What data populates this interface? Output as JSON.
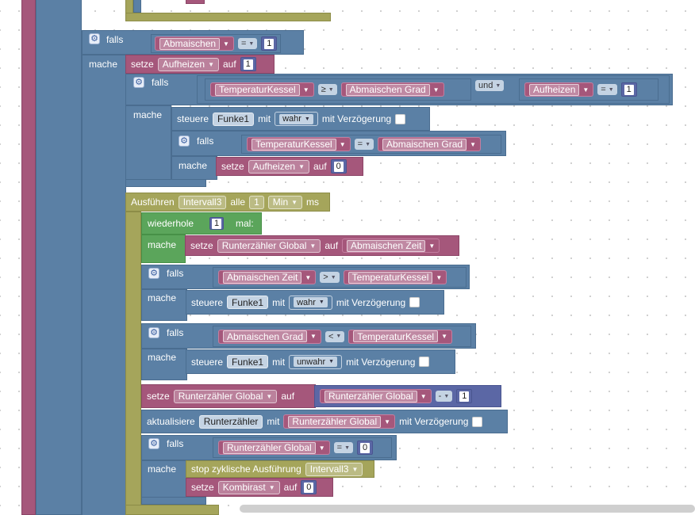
{
  "kw": {
    "falls": "falls",
    "mache": "mache",
    "setze": "setze",
    "auf": "auf",
    "und": "und",
    "steuere": "steuere",
    "mit": "mit",
    "mit_verzoegerung": "mit Verzögerung",
    "ausfuehren": "Ausführen",
    "alle": "alle",
    "ms": "ms",
    "wiederhole": "wiederhole",
    "mal": "mal:",
    "aktualisiere": "aktualisiere",
    "stop": "stop zyklische Ausführung"
  },
  "vars": {
    "abmaischen": "Abmaischen",
    "aufheizen": "Aufheizen",
    "temperaturkessel": "TemperaturKessel",
    "abmaischen_grad": "Abmaischen Grad",
    "abmaischen_zeit": "Abmaischen Zeit",
    "runterzaehler_global": "Runterzähler Global",
    "kombirast": "Kombirast"
  },
  "items": {
    "funke1": "Funke1",
    "intervall3": "Intervall3",
    "runterzaehler": "Runterzähler"
  },
  "values": {
    "wahr": "wahr",
    "unwahr": "unwahr",
    "min": "Min",
    "n0": "0",
    "n1": "1"
  },
  "ops": {
    "eq": "=",
    "ge": "≥",
    "gt": ">",
    "lt": "<",
    "minus": "-"
  },
  "icons": {
    "gear": "gear-icon",
    "dropdown": "dropdown-arrow-icon"
  },
  "colors": {
    "variables": "#a5577b",
    "logic": "#5b80a5",
    "timer": "#a5a55b",
    "loop": "#5ba55b",
    "math": "#5b67a5"
  }
}
